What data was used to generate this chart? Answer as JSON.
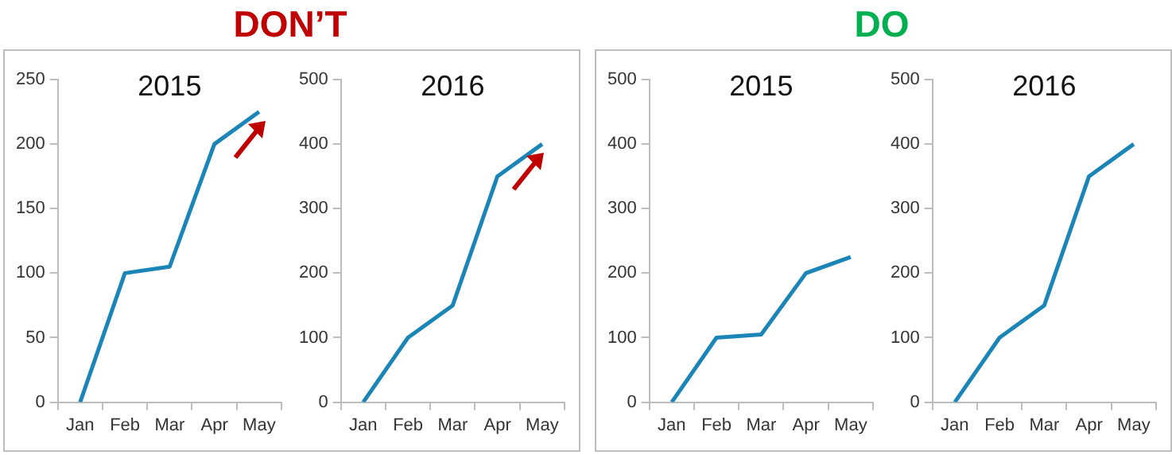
{
  "chart_data": [
    {
      "type": "line",
      "title": "2015",
      "annotations": [
        "DON’T"
      ],
      "categories": [
        "Jan",
        "Feb",
        "Mar",
        "Apr",
        "May"
      ],
      "ylim": [
        0,
        250
      ],
      "yticks": [
        0,
        50,
        100,
        150,
        200,
        250
      ],
      "series": [
        {
          "color": "#1b85b8",
          "values": [
            0,
            100,
            105,
            200,
            225
          ]
        }
      ]
    },
    {
      "type": "line",
      "title": "2016",
      "categories": [
        "Jan",
        "Feb",
        "Mar",
        "Apr",
        "May"
      ],
      "ylim": [
        0,
        500
      ],
      "yticks": [
        0,
        100,
        200,
        300,
        400,
        500
      ],
      "series": [
        {
          "color": "#1b85b8",
          "values": [
            0,
            100,
            150,
            350,
            400
          ]
        }
      ]
    },
    {
      "type": "line",
      "title": "2015",
      "annotations": [
        "DO"
      ],
      "categories": [
        "Jan",
        "Feb",
        "Mar",
        "Apr",
        "May"
      ],
      "ylim": [
        0,
        500
      ],
      "yticks": [
        0,
        100,
        200,
        300,
        400,
        500
      ],
      "series": [
        {
          "color": "#1b85b8",
          "values": [
            0,
            100,
            105,
            200,
            225
          ]
        }
      ]
    },
    {
      "type": "line",
      "title": "2016",
      "categories": [
        "Jan",
        "Feb",
        "Mar",
        "Apr",
        "May"
      ],
      "ylim": [
        0,
        500
      ],
      "yticks": [
        0,
        100,
        200,
        300,
        400,
        500
      ],
      "series": [
        {
          "color": "#1b85b8",
          "values": [
            0,
            100,
            150,
            350,
            400
          ]
        }
      ]
    }
  ]
}
